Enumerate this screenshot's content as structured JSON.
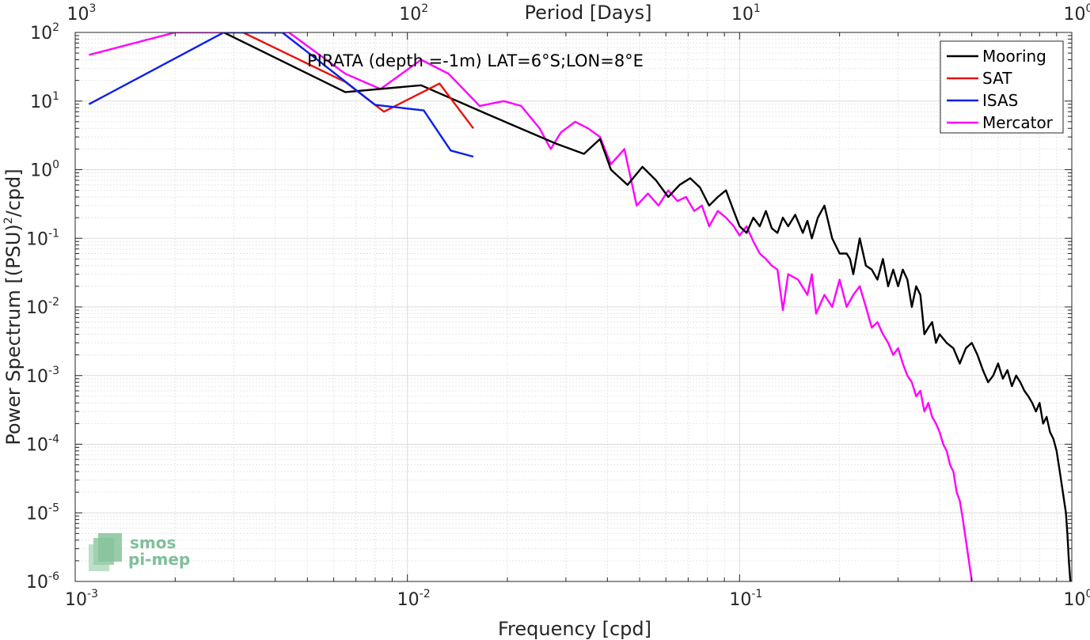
{
  "chart_data": {
    "type": "line",
    "title": "PIRATA (depth =-1m) LAT=6°S;LON=8°E",
    "xlabel": "Frequency [cpd]",
    "ylabel": "Power Spectrum [(PSU)²/cpd]",
    "ylabel_parts": [
      "Power Spectrum [(PSU)",
      "2",
      "/cpd]"
    ],
    "top_xlabel": "Period [Days]",
    "x_scale": "log",
    "y_scale": "log",
    "xlim": [
      0.001,
      1
    ],
    "ylim": [
      1e-06,
      100
    ],
    "grid": true,
    "legend_position": "top-right",
    "x_ticks": [
      {
        "value": 0.001,
        "base": "10",
        "exp": "-3"
      },
      {
        "value": 0.01,
        "base": "10",
        "exp": "-2"
      },
      {
        "value": 0.1,
        "base": "10",
        "exp": "-1"
      },
      {
        "value": 1,
        "base": "10",
        "exp": "0"
      }
    ],
    "top_ticks": [
      {
        "value": 0.001,
        "base": "10",
        "exp": "3"
      },
      {
        "value": 0.01,
        "base": "10",
        "exp": "2"
      },
      {
        "value": 0.1,
        "base": "10",
        "exp": "1"
      },
      {
        "value": 1,
        "base": "10",
        "exp": "0"
      }
    ],
    "y_ticks": [
      {
        "value": 100,
        "base": "10",
        "exp": "2"
      },
      {
        "value": 10,
        "base": "10",
        "exp": "1"
      },
      {
        "value": 1,
        "base": "10",
        "exp": "0"
      },
      {
        "value": 0.1,
        "base": "10",
        "exp": "-1"
      },
      {
        "value": 0.01,
        "base": "10",
        "exp": "-2"
      },
      {
        "value": 0.001,
        "base": "10",
        "exp": "-3"
      },
      {
        "value": 0.0001,
        "base": "10",
        "exp": "-4"
      },
      {
        "value": 1e-05,
        "base": "10",
        "exp": "-5"
      },
      {
        "value": 1e-06,
        "base": "10",
        "exp": "-6"
      }
    ],
    "series": [
      {
        "name": "Mooring",
        "color": "#000000",
        "points": [
          [
            0.0028,
            100
          ],
          [
            0.0065,
            13.5
          ],
          [
            0.011,
            17
          ],
          [
            0.018,
            6
          ],
          [
            0.028,
            2.4
          ],
          [
            0.034,
            1.7
          ],
          [
            0.038,
            2.8
          ],
          [
            0.041,
            1.0
          ],
          [
            0.046,
            0.6
          ],
          [
            0.051,
            1.1
          ],
          [
            0.056,
            0.7
          ],
          [
            0.061,
            0.4
          ],
          [
            0.066,
            0.6
          ],
          [
            0.071,
            0.75
          ],
          [
            0.076,
            0.55
          ],
          [
            0.081,
            0.3
          ],
          [
            0.086,
            0.4
          ],
          [
            0.091,
            0.5
          ],
          [
            0.096,
            0.25
          ],
          [
            0.1,
            0.15
          ],
          [
            0.105,
            0.12
          ],
          [
            0.11,
            0.2
          ],
          [
            0.115,
            0.15
          ],
          [
            0.12,
            0.25
          ],
          [
            0.125,
            0.14
          ],
          [
            0.13,
            0.12
          ],
          [
            0.135,
            0.2
          ],
          [
            0.14,
            0.15
          ],
          [
            0.147,
            0.22
          ],
          [
            0.155,
            0.12
          ],
          [
            0.16,
            0.18
          ],
          [
            0.165,
            0.1
          ],
          [
            0.172,
            0.2
          ],
          [
            0.18,
            0.3
          ],
          [
            0.19,
            0.1
          ],
          [
            0.2,
            0.06
          ],
          [
            0.21,
            0.06
          ],
          [
            0.215,
            0.05
          ],
          [
            0.22,
            0.03
          ],
          [
            0.23,
            0.1
          ],
          [
            0.24,
            0.04
          ],
          [
            0.25,
            0.035
          ],
          [
            0.26,
            0.025
          ],
          [
            0.27,
            0.05
          ],
          [
            0.28,
            0.02
          ],
          [
            0.29,
            0.035
          ],
          [
            0.3,
            0.02
          ],
          [
            0.31,
            0.035
          ],
          [
            0.32,
            0.025
          ],
          [
            0.33,
            0.01
          ],
          [
            0.34,
            0.02
          ],
          [
            0.35,
            0.015
          ],
          [
            0.36,
            0.004
          ],
          [
            0.37,
            0.005
          ],
          [
            0.38,
            0.006
          ],
          [
            0.39,
            0.003
          ],
          [
            0.4,
            0.004
          ],
          [
            0.42,
            0.003
          ],
          [
            0.44,
            0.0025
          ],
          [
            0.46,
            0.0015
          ],
          [
            0.48,
            0.0025
          ],
          [
            0.5,
            0.003
          ],
          [
            0.52,
            0.002
          ],
          [
            0.54,
            0.0012
          ],
          [
            0.56,
            0.0008
          ],
          [
            0.58,
            0.001
          ],
          [
            0.6,
            0.0015
          ],
          [
            0.62,
            0.0009
          ],
          [
            0.64,
            0.0012
          ],
          [
            0.66,
            0.0007
          ],
          [
            0.68,
            0.001
          ],
          [
            0.7,
            0.0008
          ],
          [
            0.72,
            0.0006
          ],
          [
            0.74,
            0.0005
          ],
          [
            0.76,
            0.0004
          ],
          [
            0.78,
            0.0003
          ],
          [
            0.8,
            0.0004
          ],
          [
            0.82,
            0.0002
          ],
          [
            0.84,
            0.00025
          ],
          [
            0.86,
            0.00015
          ],
          [
            0.88,
            0.00012
          ],
          [
            0.9,
            8e-05
          ],
          [
            0.92,
            4e-05
          ],
          [
            0.94,
            2e-05
          ],
          [
            0.96,
            1e-05
          ],
          [
            0.97,
            5e-06
          ],
          [
            0.98,
            2e-06
          ],
          [
            0.99,
            1e-06
          ]
        ]
      },
      {
        "name": "SAT",
        "color": "#e8120c",
        "points": [
          [
            0.0032,
            100
          ],
          [
            0.0065,
            19
          ],
          [
            0.0085,
            7
          ],
          [
            0.0125,
            18
          ],
          [
            0.0158,
            4
          ]
        ]
      },
      {
        "name": "ISAS",
        "color": "#0b1fe8",
        "points": [
          [
            0.0011,
            9
          ],
          [
            0.0028,
            100
          ],
          [
            0.0042,
            100
          ],
          [
            0.008,
            8.8
          ],
          [
            0.0112,
            7.3
          ],
          [
            0.0135,
            1.9
          ],
          [
            0.0158,
            1.55
          ]
        ]
      },
      {
        "name": "Mercator",
        "color": "#ff00ff",
        "points": [
          [
            0.0011,
            47
          ],
          [
            0.002,
            100
          ],
          [
            0.0044,
            100
          ],
          [
            0.0065,
            25
          ],
          [
            0.0083,
            15
          ],
          [
            0.011,
            40
          ],
          [
            0.0133,
            25
          ],
          [
            0.0165,
            8.5
          ],
          [
            0.0195,
            10
          ],
          [
            0.022,
            8.5
          ],
          [
            0.025,
            4
          ],
          [
            0.027,
            2
          ],
          [
            0.029,
            3.5
          ],
          [
            0.032,
            5
          ],
          [
            0.035,
            4
          ],
          [
            0.038,
            3
          ],
          [
            0.041,
            1.2
          ],
          [
            0.045,
            2.0
          ],
          [
            0.049,
            0.3
          ],
          [
            0.053,
            0.45
          ],
          [
            0.057,
            0.3
          ],
          [
            0.061,
            0.5
          ],
          [
            0.065,
            0.35
          ],
          [
            0.069,
            0.4
          ],
          [
            0.073,
            0.25
          ],
          [
            0.077,
            0.3
          ],
          [
            0.081,
            0.15
          ],
          [
            0.086,
            0.25
          ],
          [
            0.091,
            0.2
          ],
          [
            0.096,
            0.15
          ],
          [
            0.1,
            0.11
          ],
          [
            0.105,
            0.15
          ],
          [
            0.11,
            0.09
          ],
          [
            0.115,
            0.06
          ],
          [
            0.12,
            0.05
          ],
          [
            0.125,
            0.04
          ],
          [
            0.13,
            0.035
          ],
          [
            0.135,
            0.009
          ],
          [
            0.14,
            0.03
          ],
          [
            0.15,
            0.025
          ],
          [
            0.16,
            0.015
          ],
          [
            0.165,
            0.03
          ],
          [
            0.17,
            0.008
          ],
          [
            0.18,
            0.015
          ],
          [
            0.19,
            0.01
          ],
          [
            0.2,
            0.025
          ],
          [
            0.21,
            0.01
          ],
          [
            0.22,
            0.015
          ],
          [
            0.23,
            0.02
          ],
          [
            0.24,
            0.01
          ],
          [
            0.25,
            0.005
          ],
          [
            0.26,
            0.006
          ],
          [
            0.27,
            0.004
          ],
          [
            0.28,
            0.003
          ],
          [
            0.29,
            0.002
          ],
          [
            0.3,
            0.0025
          ],
          [
            0.31,
            0.0015
          ],
          [
            0.32,
            0.001
          ],
          [
            0.33,
            0.0008
          ],
          [
            0.34,
            0.0005
          ],
          [
            0.35,
            0.0006
          ],
          [
            0.36,
            0.0003
          ],
          [
            0.37,
            0.0004
          ],
          [
            0.38,
            0.00025
          ],
          [
            0.39,
            0.0002
          ],
          [
            0.4,
            0.00015
          ],
          [
            0.41,
            0.0001
          ],
          [
            0.42,
            8e-05
          ],
          [
            0.43,
            5e-05
          ],
          [
            0.44,
            4e-05
          ],
          [
            0.45,
            2e-05
          ],
          [
            0.46,
            1.5e-05
          ],
          [
            0.47,
            8e-06
          ],
          [
            0.48,
            4e-06
          ],
          [
            0.49,
            2e-06
          ],
          [
            0.5,
            1e-06
          ]
        ]
      }
    ]
  },
  "logo": {
    "line1": "smos",
    "line2": "pi-mep"
  }
}
